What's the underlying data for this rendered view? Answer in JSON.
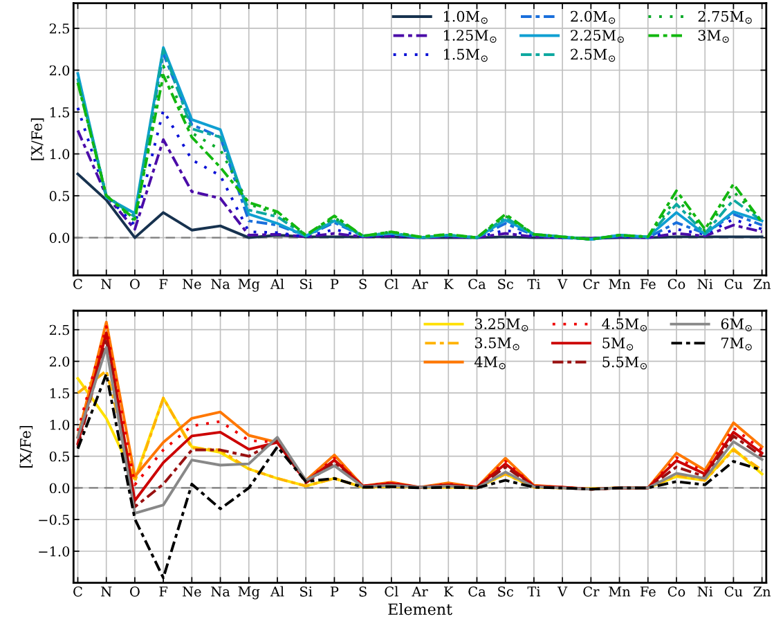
{
  "chart_data": [
    {
      "type": "line",
      "ylabel": "[X/Fe]",
      "categories": [
        "C",
        "N",
        "O",
        "F",
        "Ne",
        "Na",
        "Mg",
        "Al",
        "Si",
        "P",
        "S",
        "Cl",
        "Ar",
        "K",
        "Ca",
        "Sc",
        "Ti",
        "V",
        "Cr",
        "Mn",
        "Fe",
        "Co",
        "Ni",
        "Cu",
        "Zn"
      ],
      "ylim": [
        -0.45,
        2.8
      ],
      "yticks": [
        {
          "value": 0,
          "label": "0.0"
        },
        0.5,
        {
          "value": 1,
          "label": "1.0"
        },
        1.5,
        {
          "value": 2,
          "label": "2.0"
        },
        2.5
      ],
      "grid": true,
      "legend": "top right",
      "marker": "none",
      "ref_lines": [
        {
          "axis": "y",
          "value": 0,
          "color": "#808080",
          "line_style": "dashed"
        }
      ],
      "series": [
        {
          "name": "1.0M$_{⊙}$",
          "color": "#17324f",
          "line_style": "solid",
          "values": [
            0.76,
            0.45,
            0.0,
            0.3,
            0.09,
            0.14,
            0.0,
            0.03,
            0.01,
            0.01,
            0.01,
            0.01,
            0.0,
            0.0,
            0.0,
            0.01,
            0.0,
            0.0,
            -0.01,
            0.0,
            0.0,
            0.01,
            0.01,
            0.01,
            0.01
          ]
        },
        {
          "name": "1.25M$_{⊙}$",
          "color": "#4b0ca8",
          "line_style": "dashdot",
          "values": [
            1.28,
            0.5,
            0.1,
            1.17,
            0.55,
            0.47,
            0.03,
            0.04,
            0.01,
            0.05,
            0.01,
            0.02,
            0.0,
            0.01,
            0.0,
            0.05,
            0.01,
            0.0,
            -0.01,
            0.01,
            0.0,
            0.05,
            0.02,
            0.15,
            0.07
          ]
        },
        {
          "name": "1.5M$_{⊙}$",
          "color": "#0b12d6",
          "line_style": "dotted",
          "values": [
            1.55,
            0.5,
            0.15,
            1.52,
            0.93,
            0.74,
            0.07,
            0.06,
            0.01,
            0.1,
            0.01,
            0.03,
            0.0,
            0.02,
            0.0,
            0.09,
            0.02,
            0.0,
            -0.01,
            0.01,
            0.0,
            0.1,
            0.04,
            0.22,
            0.1
          ]
        },
        {
          "name": "2.0M$_{⊙}$",
          "color": "#1a6fdb",
          "line_style": "dashdot",
          "values": [
            1.9,
            0.5,
            0.25,
            2.2,
            1.35,
            1.2,
            0.2,
            0.15,
            0.02,
            0.18,
            0.02,
            0.05,
            0.0,
            0.03,
            0.0,
            0.17,
            0.03,
            0.0,
            -0.02,
            0.02,
            0.0,
            0.18,
            0.05,
            0.28,
            0.15
          ]
        },
        {
          "name": "2.25M$_{⊙}$",
          "color": "#0f9fd2",
          "line_style": "solid",
          "values": [
            1.96,
            0.48,
            0.29,
            2.27,
            1.41,
            1.29,
            0.28,
            0.17,
            0.02,
            0.2,
            0.02,
            0.05,
            0.0,
            0.03,
            0.0,
            0.21,
            0.04,
            0.01,
            -0.02,
            0.03,
            0.01,
            0.3,
            0.04,
            0.31,
            0.2
          ]
        },
        {
          "name": "2.5M$_{⊙}$",
          "color": "#0ea8a0",
          "line_style": "dashdot",
          "values": [
            1.9,
            0.5,
            0.25,
            2.25,
            1.3,
            1.2,
            0.33,
            0.25,
            0.02,
            0.22,
            0.02,
            0.06,
            0.0,
            0.03,
            0.0,
            0.24,
            0.04,
            0.01,
            -0.02,
            0.03,
            0.01,
            0.4,
            0.05,
            0.45,
            0.2
          ]
        },
        {
          "name": "2.75M$_{⊙}$",
          "color": "#0dab2b",
          "line_style": "dotted",
          "values": [
            1.85,
            0.5,
            0.2,
            2.05,
            1.25,
            1.05,
            0.4,
            0.28,
            0.03,
            0.24,
            0.02,
            0.07,
            0.01,
            0.04,
            0.0,
            0.26,
            0.04,
            0.01,
            -0.02,
            0.03,
            0.01,
            0.47,
            0.08,
            0.55,
            0.2
          ]
        },
        {
          "name": "3M$_{⊙}$",
          "color": "#12b70f",
          "line_style": "dashdot",
          "values": [
            1.85,
            0.5,
            0.22,
            1.94,
            1.2,
            0.84,
            0.42,
            0.31,
            0.03,
            0.26,
            0.02,
            0.07,
            0.01,
            0.04,
            0.0,
            0.28,
            0.04,
            0.01,
            -0.02,
            0.03,
            0.01,
            0.56,
            0.1,
            0.64,
            0.18
          ]
        }
      ]
    },
    {
      "type": "line",
      "xlabel": "Element",
      "ylabel": "[X/Fe]",
      "categories": [
        "C",
        "N",
        "O",
        "F",
        "Ne",
        "Na",
        "Mg",
        "Al",
        "Si",
        "P",
        "S",
        "Cl",
        "Ar",
        "K",
        "Ca",
        "Sc",
        "Ti",
        "V",
        "Cr",
        "Mn",
        "Fe",
        "Co",
        "Ni",
        "Cu",
        "Zn"
      ],
      "ylim": [
        -1.5,
        2.8
      ],
      "yticks": [
        {
          "value": -1,
          "label": "−1.0"
        },
        {
          "value": -0.5,
          "label": "−0.5"
        },
        {
          "value": 0,
          "label": "0.0"
        },
        0.5,
        {
          "value": 1,
          "label": "1.0"
        },
        1.5,
        {
          "value": 2,
          "label": "2.0"
        },
        2.5
      ],
      "grid": true,
      "legend": "top right",
      "marker": "none",
      "ref_lines": [
        {
          "axis": "y",
          "value": 0,
          "color": "#808080",
          "line_style": "dashed"
        }
      ],
      "series": [
        {
          "name": "3.25M$_{⊙}$",
          "color": "#ffe000",
          "line_style": "solid",
          "values": [
            1.73,
            1.1,
            0.14,
            1.42,
            0.65,
            0.56,
            0.3,
            0.15,
            0.03,
            0.15,
            0.01,
            0.02,
            0.01,
            0.01,
            0.0,
            0.22,
            0.01,
            0.0,
            -0.01,
            0.0,
            0.0,
            0.18,
            0.12,
            0.62,
            0.22
          ]
        },
        {
          "name": "3.5M$_{⊙}$",
          "color": "#ffb300",
          "line_style": "dashdot",
          "values": [
            1.5,
            1.85,
            0.1,
            1.42,
            0.63,
            0.6,
            0.3,
            0.15,
            0.03,
            0.15,
            0.01,
            0.02,
            0.01,
            0.01,
            0.0,
            0.22,
            0.01,
            0.0,
            -0.01,
            0.0,
            0.0,
            0.2,
            0.12,
            0.6,
            0.28
          ]
        },
        {
          "name": "4M$_{⊙}$",
          "color": "#ff7700",
          "line_style": "solid",
          "values": [
            0.8,
            2.62,
            0.18,
            0.72,
            1.1,
            1.2,
            0.83,
            0.72,
            0.12,
            0.52,
            0.03,
            0.09,
            0.01,
            0.08,
            0.01,
            0.47,
            0.04,
            0.01,
            -0.02,
            0.0,
            0.0,
            0.55,
            0.28,
            1.03,
            0.65
          ]
        },
        {
          "name": "4.5M$_{⊙}$",
          "color": "#ee0000",
          "line_style": "dotted",
          "values": [
            0.9,
            2.55,
            0.05,
            0.6,
            0.98,
            1.05,
            0.75,
            0.72,
            0.1,
            0.47,
            0.03,
            0.08,
            0.01,
            0.06,
            0.01,
            0.42,
            0.03,
            0.01,
            -0.02,
            0.0,
            0.0,
            0.48,
            0.25,
            0.95,
            0.6
          ]
        },
        {
          "name": "5M$_{⊙}$",
          "color": "#cc0000",
          "line_style": "solid",
          "values": [
            0.7,
            2.45,
            -0.2,
            0.4,
            0.82,
            0.88,
            0.61,
            0.72,
            0.1,
            0.44,
            0.03,
            0.07,
            0.01,
            0.05,
            0.01,
            0.38,
            0.03,
            0.01,
            -0.02,
            0.0,
            0.0,
            0.43,
            0.22,
            0.88,
            0.55
          ]
        },
        {
          "name": "5.5M$_{⊙}$",
          "color": "#991111",
          "line_style": "dashdot",
          "values": [
            0.65,
            2.35,
            -0.3,
            0.06,
            0.6,
            0.6,
            0.5,
            0.75,
            0.08,
            0.4,
            0.02,
            0.05,
            0.01,
            0.04,
            0.0,
            0.33,
            0.02,
            0.0,
            -0.02,
            0.0,
            0.0,
            0.33,
            0.18,
            0.82,
            0.5
          ]
        },
        {
          "name": "6M$_{⊙}$",
          "color": "#888888",
          "line_style": "solid",
          "values": [
            0.8,
            2.22,
            -0.4,
            -0.27,
            0.44,
            0.36,
            0.38,
            0.8,
            0.12,
            0.35,
            0.02,
            0.04,
            0.01,
            0.03,
            0.0,
            0.25,
            0.02,
            0.0,
            -0.02,
            0.0,
            0.0,
            0.23,
            0.15,
            0.73,
            0.45
          ]
        },
        {
          "name": "7M$_{⊙}$",
          "color": "#000000",
          "line_style": "dashdot",
          "values": [
            0.62,
            1.8,
            -0.49,
            -1.42,
            0.06,
            -0.33,
            0.0,
            0.65,
            0.1,
            0.15,
            0.01,
            0.02,
            0.0,
            0.01,
            0.0,
            0.12,
            0.01,
            0.0,
            -0.02,
            0.0,
            0.0,
            0.1,
            0.05,
            0.42,
            0.28
          ]
        }
      ]
    }
  ]
}
